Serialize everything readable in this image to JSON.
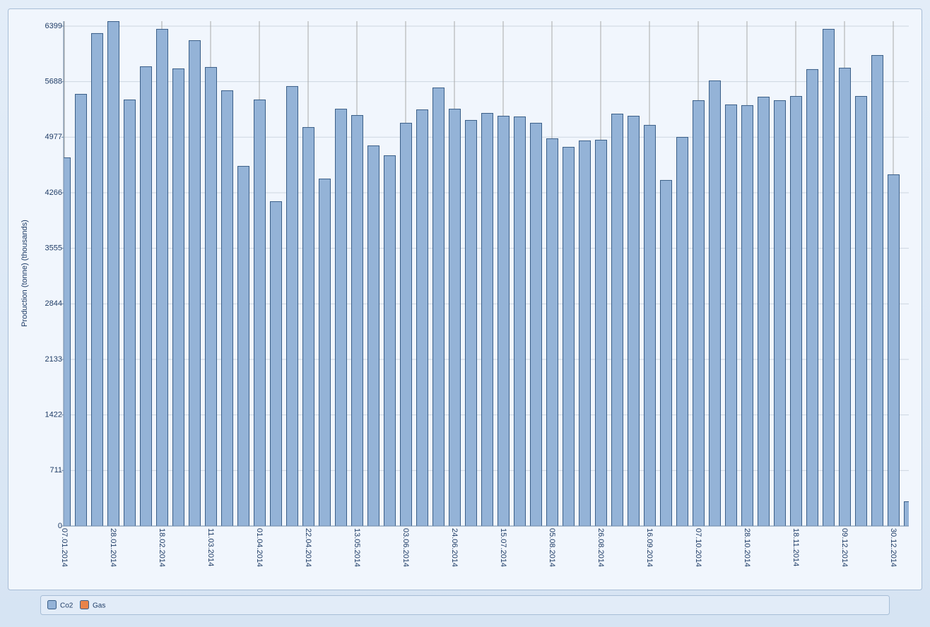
{
  "chart_data": {
    "type": "bar",
    "y_label": "Production (tonne) (thousands)",
    "categories": [
      "07.01.2014",
      null,
      null,
      "28.01.2014",
      null,
      null,
      "18.02.2014",
      null,
      null,
      "11.03.2014",
      null,
      null,
      "01.04.2014",
      null,
      null,
      "22.04.2014",
      null,
      null,
      "13.05.2014",
      null,
      null,
      "03.06.2014",
      null,
      null,
      "24.06.2014",
      null,
      null,
      "15.07.2014",
      null,
      null,
      "05.08.2014",
      null,
      null,
      "26.08.2014",
      null,
      null,
      "16.09.2014",
      null,
      null,
      "07.10.2014",
      null,
      null,
      "28.10.2014",
      null,
      null,
      "18.11.2014",
      null,
      null,
      "09.12.2014",
      null,
      null,
      "30.12.2014",
      null
    ],
    "series": [
      {
        "name": "Co2",
        "color": "#94b3d7",
        "values": [
          4718,
          5531,
          6309,
          6462,
          5459,
          5884,
          6363,
          5857,
          6218,
          5875,
          5577,
          4609,
          5459,
          4157,
          5631,
          5106,
          4447,
          5341,
          5260,
          4871,
          4745,
          5161,
          5332,
          5613,
          5341,
          5197,
          5287,
          5251,
          5242,
          5161,
          4962,
          4853,
          4935,
          4944,
          5278,
          5251,
          5134,
          4429,
          4980,
          5450,
          5703,
          5396,
          5387,
          5495,
          5450,
          5504,
          5848,
          6363,
          5866,
          5504,
          6028,
          4501,
          316
        ]
      },
      {
        "name": "Gas",
        "color": "#e8834a",
        "values": [
          null,
          null,
          null,
          null,
          null,
          null,
          null,
          null,
          null,
          null,
          null,
          null,
          null,
          null,
          null,
          null,
          null,
          null,
          null,
          null,
          null,
          null,
          null,
          null,
          null,
          null,
          null,
          null,
          null,
          null,
          null,
          null,
          null,
          null,
          null,
          null,
          null,
          null,
          null,
          null,
          null,
          null,
          null,
          null,
          null,
          null,
          null,
          null,
          null,
          null,
          null,
          null,
          null
        ]
      }
    ],
    "ylim": [
      0,
      6462
    ],
    "yticks": [
      0,
      711,
      1422,
      2133,
      2844,
      3555,
      4266,
      4977,
      5688,
      6399
    ],
    "grid": true
  }
}
